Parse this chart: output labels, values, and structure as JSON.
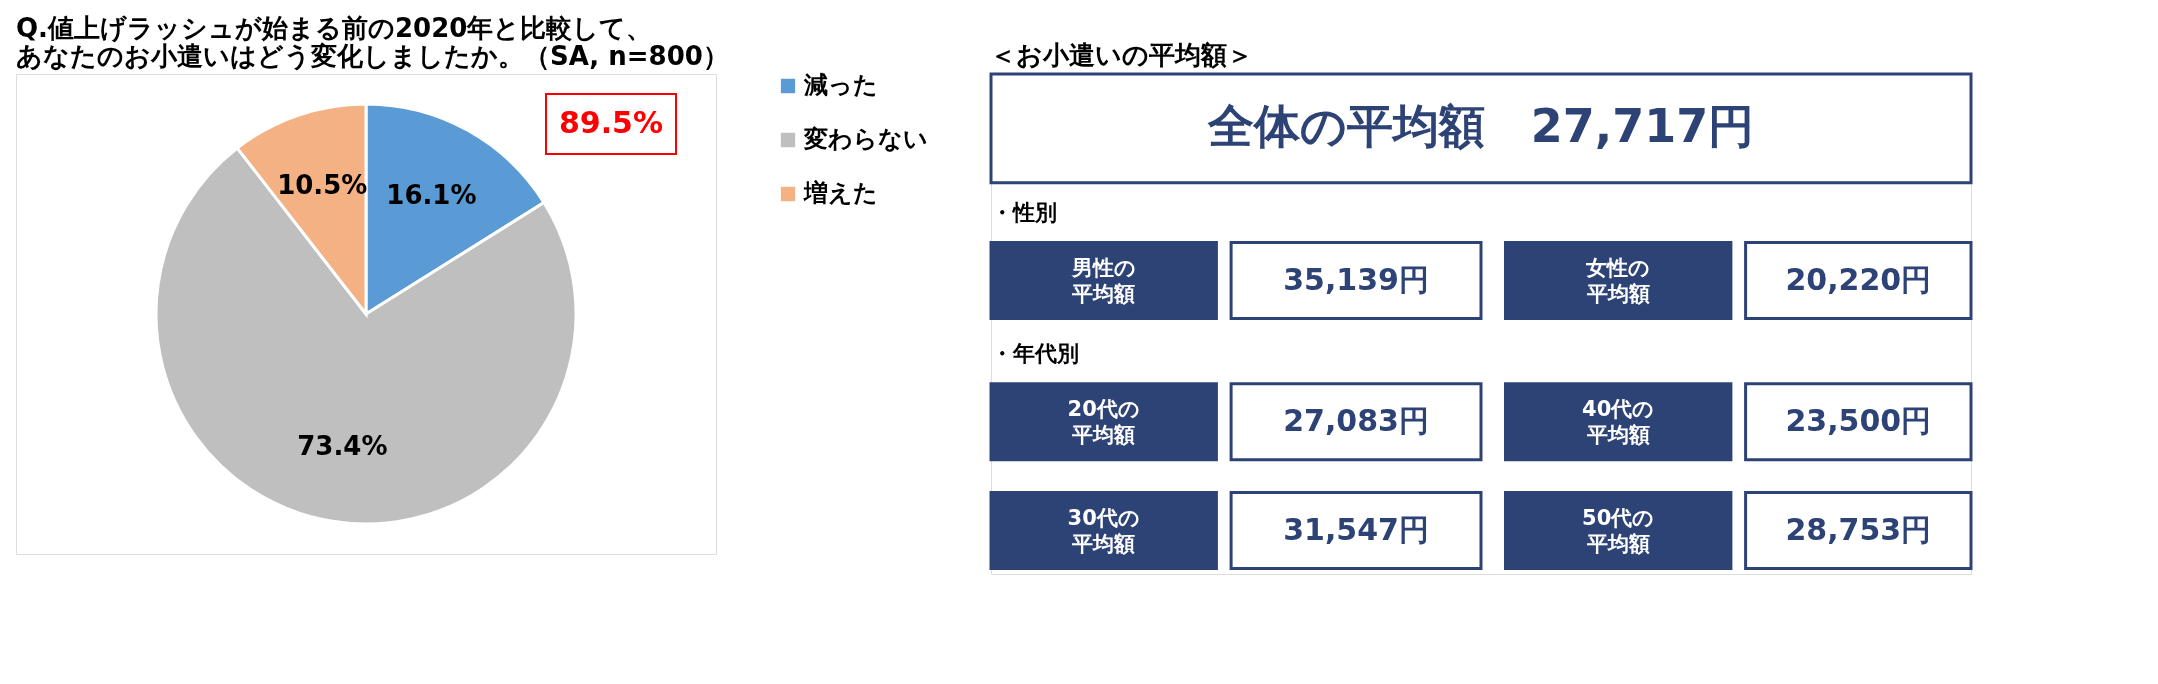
{
  "chart_data": [
    {
      "type": "pie",
      "title": "Q.値上げラッシュが始まる前の2020年と比較して、あなたのお小遣いはどう変化しましたか。（SA, n=800）",
      "categories": [
        "減った",
        "変わらない",
        "増えた"
      ],
      "values": [
        16.1,
        73.4,
        10.5
      ],
      "colors": [
        "#5b9bd5",
        "#bfbfbf",
        "#f4b183"
      ],
      "value_labels": [
        "16.1%",
        "73.4%",
        "10.5%"
      ],
      "legend": "right",
      "annotations": [
        "89.5%"
      ]
    },
    {
      "type": "other",
      "title": "＜お小遣いの平均額＞",
      "annotations": [
        "全体の平均額　27,717円",
        "・性別",
        "男性の平均額",
        "35,139円",
        "女性の平均額",
        "20,220円",
        "・年代別",
        "20代の平均額",
        "27,083円",
        "40代の平均額",
        "23,500円",
        "30代の平均額",
        "31,547円",
        "50代の平均額",
        "28,753円"
      ]
    }
  ]
}
